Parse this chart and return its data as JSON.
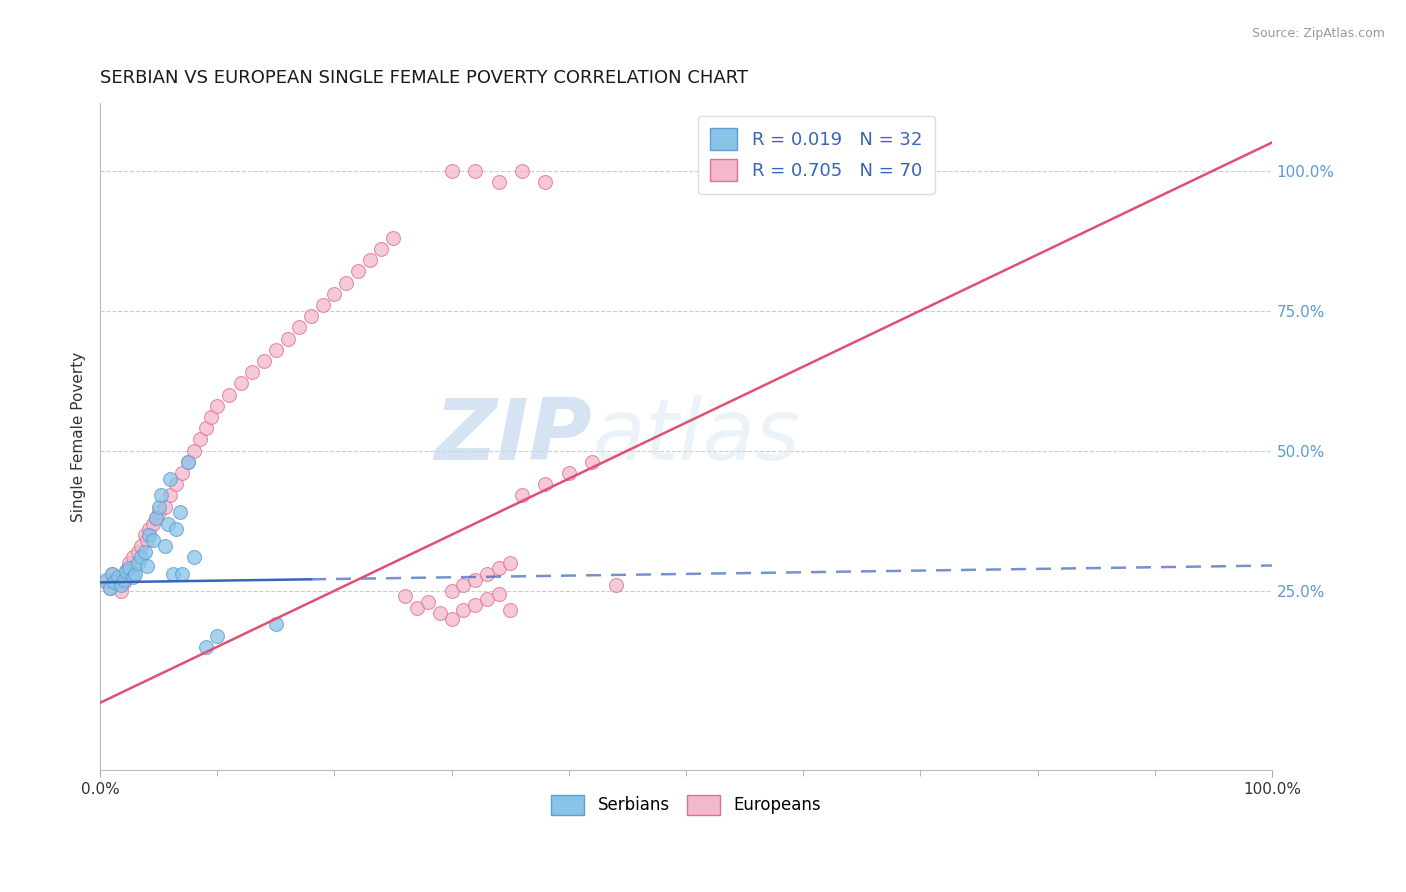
{
  "title": "SERBIAN VS EUROPEAN SINGLE FEMALE POVERTY CORRELATION CHART",
  "source_text": "Source: ZipAtlas.com",
  "ylabel": "Single Female Poverty",
  "watermark_zip": "ZIP",
  "watermark_atlas": "atlas",
  "xlim": [
    0.0,
    1.0
  ],
  "ylim": [
    -0.07,
    1.12
  ],
  "ytick_positions": [
    0.25,
    0.5,
    0.75,
    1.0
  ],
  "ytick_labels": [
    "25.0%",
    "50.0%",
    "75.0%",
    "100.0%"
  ],
  "legend_line1": "R = 0.019   N = 32",
  "legend_line2": "R = 0.705   N = 70",
  "legend_labels_bottom": [
    "Serbians",
    "Europeans"
  ],
  "serbian_color": "#89c4e8",
  "european_color": "#f4b8cc",
  "serbian_edge": "#5b9fd4",
  "european_edge": "#e07090",
  "blue_line_color": "#3864b8",
  "pink_line_color": "#e05070",
  "grid_color": "#cccccc",
  "background_color": "#ffffff",
  "title_fontsize": 13,
  "axis_label_fontsize": 11,
  "tick_fontsize": 11,
  "marker_size": 100,
  "line_width": 1.8,
  "serbian_points_x": [
    0.005,
    0.008,
    0.01,
    0.012,
    0.015,
    0.018,
    0.02,
    0.022,
    0.025,
    0.028,
    0.03,
    0.032,
    0.035,
    0.038,
    0.04,
    0.042,
    0.045,
    0.048,
    0.05,
    0.052,
    0.055,
    0.058,
    0.06,
    0.062,
    0.065,
    0.068,
    0.07,
    0.075,
    0.08,
    0.09,
    0.1,
    0.15
  ],
  "serbian_points_y": [
    0.27,
    0.255,
    0.28,
    0.265,
    0.275,
    0.26,
    0.27,
    0.285,
    0.29,
    0.275,
    0.28,
    0.3,
    0.31,
    0.32,
    0.295,
    0.35,
    0.34,
    0.38,
    0.4,
    0.42,
    0.33,
    0.37,
    0.45,
    0.28,
    0.36,
    0.39,
    0.28,
    0.48,
    0.31,
    0.15,
    0.17,
    0.19
  ],
  "european_points_x": [
    0.005,
    0.008,
    0.01,
    0.012,
    0.015,
    0.018,
    0.02,
    0.022,
    0.025,
    0.028,
    0.03,
    0.032,
    0.035,
    0.038,
    0.04,
    0.042,
    0.045,
    0.048,
    0.05,
    0.055,
    0.06,
    0.065,
    0.07,
    0.075,
    0.08,
    0.085,
    0.09,
    0.095,
    0.1,
    0.11,
    0.12,
    0.13,
    0.14,
    0.15,
    0.16,
    0.17,
    0.18,
    0.19,
    0.2,
    0.21,
    0.22,
    0.23,
    0.24,
    0.25,
    0.26,
    0.27,
    0.28,
    0.29,
    0.3,
    0.31,
    0.32,
    0.33,
    0.34,
    0.35,
    0.36,
    0.38,
    0.4,
    0.42,
    0.44,
    0.3,
    0.32,
    0.34,
    0.36,
    0.38,
    0.3,
    0.31,
    0.32,
    0.33,
    0.34,
    0.35
  ],
  "european_points_y": [
    0.265,
    0.255,
    0.28,
    0.27,
    0.275,
    0.25,
    0.265,
    0.285,
    0.3,
    0.31,
    0.295,
    0.32,
    0.33,
    0.35,
    0.34,
    0.36,
    0.37,
    0.38,
    0.39,
    0.4,
    0.42,
    0.44,
    0.46,
    0.48,
    0.5,
    0.52,
    0.54,
    0.56,
    0.58,
    0.6,
    0.62,
    0.64,
    0.66,
    0.68,
    0.7,
    0.72,
    0.74,
    0.76,
    0.78,
    0.8,
    0.82,
    0.84,
    0.86,
    0.88,
    0.24,
    0.22,
    0.23,
    0.21,
    0.2,
    0.215,
    0.225,
    0.235,
    0.245,
    0.215,
    0.42,
    0.44,
    0.46,
    0.48,
    0.26,
    1.0,
    1.0,
    0.98,
    1.0,
    0.98,
    0.25,
    0.26,
    0.27,
    0.28,
    0.29,
    0.3
  ]
}
